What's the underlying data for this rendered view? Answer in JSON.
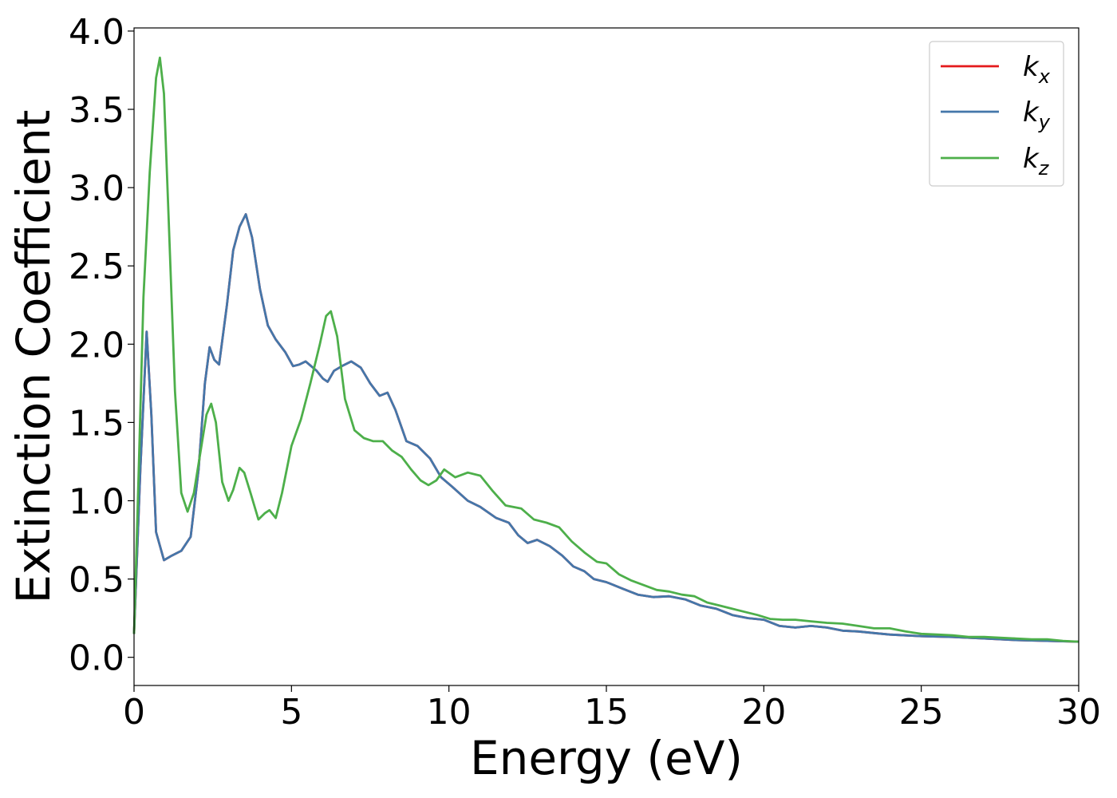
{
  "chart_data": {
    "type": "line",
    "title": "",
    "xlabel": "Energy (eV)",
    "ylabel": "Extinction Coefficient",
    "xlim": [
      0,
      30
    ],
    "ylim": [
      -0.18,
      4.02
    ],
    "xticks": [
      0,
      5,
      10,
      15,
      20,
      25,
      30
    ],
    "xtick_labels": [
      "0",
      "5",
      "10",
      "15",
      "20",
      "25",
      "30"
    ],
    "yticks": [
      0.0,
      0.5,
      1.0,
      1.5,
      2.0,
      2.5,
      3.0,
      3.5,
      4.0
    ],
    "ytick_labels": [
      "0.0",
      "0.5",
      "1.0",
      "1.5",
      "2.0",
      "2.5",
      "3.0",
      "3.5",
      "4.0"
    ],
    "grid": false,
    "legend_position": "top-right",
    "series": [
      {
        "name": "k",
        "subscript": "x",
        "color": "#e41a1c",
        "points": [
          [
            0,
            0.15
          ],
          [
            0.2,
            1.2
          ],
          [
            0.4,
            2.08
          ],
          [
            0.55,
            1.55
          ],
          [
            0.7,
            0.8
          ],
          [
            0.95,
            0.62
          ],
          [
            1.2,
            0.65
          ],
          [
            1.5,
            0.68
          ],
          [
            1.8,
            0.77
          ],
          [
            2.05,
            1.2
          ],
          [
            2.25,
            1.75
          ],
          [
            2.4,
            1.98
          ],
          [
            2.55,
            1.9
          ],
          [
            2.7,
            1.87
          ],
          [
            2.95,
            2.25
          ],
          [
            3.15,
            2.6
          ],
          [
            3.35,
            2.75
          ],
          [
            3.55,
            2.83
          ],
          [
            3.75,
            2.68
          ],
          [
            4.0,
            2.35
          ],
          [
            4.25,
            2.12
          ],
          [
            4.5,
            2.03
          ],
          [
            4.8,
            1.95
          ],
          [
            5.05,
            1.86
          ],
          [
            5.25,
            1.87
          ],
          [
            5.45,
            1.89
          ],
          [
            5.8,
            1.83
          ],
          [
            6.0,
            1.78
          ],
          [
            6.15,
            1.76
          ],
          [
            6.35,
            1.83
          ],
          [
            6.6,
            1.86
          ],
          [
            6.9,
            1.89
          ],
          [
            7.2,
            1.85
          ],
          [
            7.5,
            1.75
          ],
          [
            7.8,
            1.67
          ],
          [
            8.05,
            1.69
          ],
          [
            8.3,
            1.58
          ],
          [
            8.65,
            1.38
          ],
          [
            9.0,
            1.35
          ],
          [
            9.4,
            1.27
          ],
          [
            9.75,
            1.15
          ],
          [
            10.1,
            1.09
          ],
          [
            10.6,
            1.0
          ],
          [
            11.0,
            0.96
          ],
          [
            11.5,
            0.89
          ],
          [
            11.9,
            0.86
          ],
          [
            12.2,
            0.78
          ],
          [
            12.5,
            0.73
          ],
          [
            12.8,
            0.75
          ],
          [
            13.2,
            0.71
          ],
          [
            13.6,
            0.65
          ],
          [
            13.95,
            0.58
          ],
          [
            14.3,
            0.55
          ],
          [
            14.6,
            0.5
          ],
          [
            15.0,
            0.48
          ],
          [
            15.5,
            0.44
          ],
          [
            16.0,
            0.4
          ],
          [
            16.5,
            0.385
          ],
          [
            17.0,
            0.39
          ],
          [
            17.5,
            0.37
          ],
          [
            18.0,
            0.33
          ],
          [
            18.5,
            0.31
          ],
          [
            19.0,
            0.27
          ],
          [
            19.5,
            0.25
          ],
          [
            20.0,
            0.24
          ],
          [
            20.5,
            0.2
          ],
          [
            21.0,
            0.19
          ],
          [
            21.5,
            0.2
          ],
          [
            22.0,
            0.19
          ],
          [
            22.5,
            0.17
          ],
          [
            23.0,
            0.165
          ],
          [
            23.5,
            0.155
          ],
          [
            24.0,
            0.145
          ],
          [
            24.5,
            0.14
          ],
          [
            25.0,
            0.135
          ],
          [
            26.0,
            0.13
          ],
          [
            27.0,
            0.12
          ],
          [
            28.0,
            0.11
          ],
          [
            29.0,
            0.105
          ],
          [
            30.0,
            0.1
          ]
        ]
      },
      {
        "name": "k",
        "subscript": "y",
        "color": "#4477aa",
        "points": [
          [
            0,
            0.15
          ],
          [
            0.2,
            1.2
          ],
          [
            0.4,
            2.08
          ],
          [
            0.55,
            1.55
          ],
          [
            0.7,
            0.8
          ],
          [
            0.95,
            0.62
          ],
          [
            1.2,
            0.65
          ],
          [
            1.5,
            0.68
          ],
          [
            1.8,
            0.77
          ],
          [
            2.05,
            1.2
          ],
          [
            2.25,
            1.75
          ],
          [
            2.4,
            1.98
          ],
          [
            2.55,
            1.9
          ],
          [
            2.7,
            1.87
          ],
          [
            2.95,
            2.25
          ],
          [
            3.15,
            2.6
          ],
          [
            3.35,
            2.75
          ],
          [
            3.55,
            2.83
          ],
          [
            3.75,
            2.68
          ],
          [
            4.0,
            2.35
          ],
          [
            4.25,
            2.12
          ],
          [
            4.5,
            2.03
          ],
          [
            4.8,
            1.95
          ],
          [
            5.05,
            1.86
          ],
          [
            5.25,
            1.87
          ],
          [
            5.45,
            1.89
          ],
          [
            5.8,
            1.83
          ],
          [
            6.0,
            1.78
          ],
          [
            6.15,
            1.76
          ],
          [
            6.35,
            1.83
          ],
          [
            6.6,
            1.86
          ],
          [
            6.9,
            1.89
          ],
          [
            7.2,
            1.85
          ],
          [
            7.5,
            1.75
          ],
          [
            7.8,
            1.67
          ],
          [
            8.05,
            1.69
          ],
          [
            8.3,
            1.58
          ],
          [
            8.65,
            1.38
          ],
          [
            9.0,
            1.35
          ],
          [
            9.4,
            1.27
          ],
          [
            9.75,
            1.15
          ],
          [
            10.1,
            1.09
          ],
          [
            10.6,
            1.0
          ],
          [
            11.0,
            0.96
          ],
          [
            11.5,
            0.89
          ],
          [
            11.9,
            0.86
          ],
          [
            12.2,
            0.78
          ],
          [
            12.5,
            0.73
          ],
          [
            12.8,
            0.75
          ],
          [
            13.2,
            0.71
          ],
          [
            13.6,
            0.65
          ],
          [
            13.95,
            0.58
          ],
          [
            14.3,
            0.55
          ],
          [
            14.6,
            0.5
          ],
          [
            15.0,
            0.48
          ],
          [
            15.5,
            0.44
          ],
          [
            16.0,
            0.4
          ],
          [
            16.5,
            0.385
          ],
          [
            17.0,
            0.39
          ],
          [
            17.5,
            0.37
          ],
          [
            18.0,
            0.33
          ],
          [
            18.5,
            0.31
          ],
          [
            19.0,
            0.27
          ],
          [
            19.5,
            0.25
          ],
          [
            20.0,
            0.24
          ],
          [
            20.5,
            0.2
          ],
          [
            21.0,
            0.19
          ],
          [
            21.5,
            0.2
          ],
          [
            22.0,
            0.19
          ],
          [
            22.5,
            0.17
          ],
          [
            23.0,
            0.165
          ],
          [
            23.5,
            0.155
          ],
          [
            24.0,
            0.145
          ],
          [
            24.5,
            0.14
          ],
          [
            25.0,
            0.135
          ],
          [
            26.0,
            0.13
          ],
          [
            27.0,
            0.12
          ],
          [
            28.0,
            0.11
          ],
          [
            29.0,
            0.105
          ],
          [
            30.0,
            0.1
          ]
        ]
      },
      {
        "name": "k",
        "subscript": "z",
        "color": "#4daf4a",
        "points": [
          [
            0,
            0.15
          ],
          [
            0.15,
            1.2
          ],
          [
            0.3,
            2.3
          ],
          [
            0.5,
            3.1
          ],
          [
            0.7,
            3.7
          ],
          [
            0.82,
            3.83
          ],
          [
            0.95,
            3.6
          ],
          [
            1.1,
            2.8
          ],
          [
            1.3,
            1.7
          ],
          [
            1.5,
            1.05
          ],
          [
            1.7,
            0.93
          ],
          [
            1.9,
            1.05
          ],
          [
            2.1,
            1.3
          ],
          [
            2.3,
            1.55
          ],
          [
            2.45,
            1.62
          ],
          [
            2.6,
            1.5
          ],
          [
            2.8,
            1.12
          ],
          [
            3.0,
            1.0
          ],
          [
            3.15,
            1.07
          ],
          [
            3.35,
            1.21
          ],
          [
            3.5,
            1.18
          ],
          [
            3.7,
            1.05
          ],
          [
            3.95,
            0.88
          ],
          [
            4.15,
            0.92
          ],
          [
            4.3,
            0.94
          ],
          [
            4.5,
            0.89
          ],
          [
            4.7,
            1.05
          ],
          [
            5.0,
            1.35
          ],
          [
            5.3,
            1.52
          ],
          [
            5.6,
            1.75
          ],
          [
            5.9,
            2.0
          ],
          [
            6.1,
            2.18
          ],
          [
            6.25,
            2.21
          ],
          [
            6.45,
            2.05
          ],
          [
            6.7,
            1.65
          ],
          [
            7.0,
            1.45
          ],
          [
            7.3,
            1.4
          ],
          [
            7.6,
            1.38
          ],
          [
            7.9,
            1.38
          ],
          [
            8.2,
            1.32
          ],
          [
            8.5,
            1.28
          ],
          [
            8.8,
            1.2
          ],
          [
            9.1,
            1.13
          ],
          [
            9.35,
            1.1
          ],
          [
            9.6,
            1.13
          ],
          [
            9.85,
            1.2
          ],
          [
            10.2,
            1.15
          ],
          [
            10.6,
            1.18
          ],
          [
            11.0,
            1.16
          ],
          [
            11.4,
            1.06
          ],
          [
            11.8,
            0.97
          ],
          [
            12.3,
            0.95
          ],
          [
            12.7,
            0.88
          ],
          [
            13.1,
            0.86
          ],
          [
            13.5,
            0.83
          ],
          [
            13.9,
            0.74
          ],
          [
            14.3,
            0.67
          ],
          [
            14.7,
            0.61
          ],
          [
            15.0,
            0.6
          ],
          [
            15.4,
            0.53
          ],
          [
            15.8,
            0.49
          ],
          [
            16.2,
            0.46
          ],
          [
            16.6,
            0.43
          ],
          [
            17.0,
            0.42
          ],
          [
            17.4,
            0.4
          ],
          [
            17.8,
            0.39
          ],
          [
            18.2,
            0.35
          ],
          [
            18.6,
            0.33
          ],
          [
            19.0,
            0.31
          ],
          [
            19.4,
            0.29
          ],
          [
            19.8,
            0.27
          ],
          [
            20.2,
            0.245
          ],
          [
            20.6,
            0.24
          ],
          [
            21.0,
            0.24
          ],
          [
            21.5,
            0.23
          ],
          [
            22.0,
            0.22
          ],
          [
            22.5,
            0.215
          ],
          [
            23.0,
            0.2
          ],
          [
            23.5,
            0.185
          ],
          [
            24.0,
            0.185
          ],
          [
            24.5,
            0.165
          ],
          [
            25.0,
            0.15
          ],
          [
            25.5,
            0.145
          ],
          [
            26.0,
            0.14
          ],
          [
            26.5,
            0.13
          ],
          [
            27.0,
            0.13
          ],
          [
            27.5,
            0.125
          ],
          [
            28.0,
            0.12
          ],
          [
            28.5,
            0.115
          ],
          [
            29.0,
            0.115
          ],
          [
            29.5,
            0.105
          ],
          [
            30.0,
            0.1
          ]
        ]
      }
    ]
  }
}
